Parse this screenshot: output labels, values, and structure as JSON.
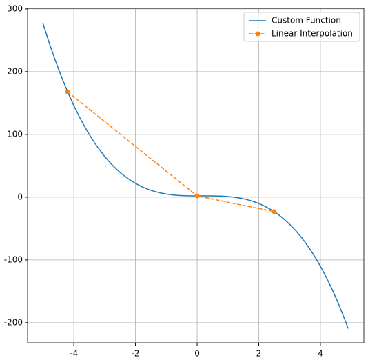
{
  "chart_data": {
    "type": "line",
    "series": [
      {
        "name": "Custom Function",
        "color": "#1f77b4",
        "style": "solid",
        "marker": false,
        "x": [
          -5,
          -4.8,
          -4.6,
          -4.4,
          -4.2,
          -4,
          -3.8,
          -3.6,
          -3.4,
          -3.2,
          -3,
          -2.8,
          -2.6,
          -2.4,
          -2.2,
          -2,
          -1.8,
          -1.6,
          -1.4,
          -1.2,
          -1,
          -0.8,
          -0.6,
          -0.4,
          -0.2,
          0,
          0.2,
          0.4,
          0.6,
          0.8,
          1,
          1.2,
          1.4,
          1.6,
          1.8,
          2,
          2.2,
          2.4,
          2.6,
          2.8,
          3,
          3.2,
          3.4,
          3.6,
          3.8,
          4,
          4.2,
          4.4,
          4.6,
          4.8,
          4.9
        ],
        "values": [
          277,
          246.22,
          217.83,
          191.73,
          167.82,
          146,
          126.18,
          108.27,
          92.17,
          77.78,
          65,
          53.74,
          43.91,
          35.41,
          28.14,
          22,
          16.9,
          12.75,
          9.45,
          6.9,
          5,
          3.66,
          2.79,
          2.29,
          2.06,
          2,
          2.02,
          2.03,
          1.93,
          1.62,
          1,
          -0.02,
          -1.53,
          -3.63,
          -6.42,
          -10,
          -14.46,
          -19.89,
          -26.39,
          -34.06,
          -43,
          -53.3,
          -65.05,
          -78.35,
          -93.3,
          -110,
          -128.54,
          -149.01,
          -171.51,
          -196.14,
          -209.29
        ]
      },
      {
        "name": "Linear Interpolation",
        "color": "#ff7f0e",
        "style": "dashed",
        "marker": true,
        "x": [
          -4.2,
          0,
          2.5
        ],
        "values": [
          167.82,
          2,
          -23
        ]
      }
    ],
    "xlim": [
      -5.5,
      5.41
    ],
    "ylim": [
      -232,
      301
    ],
    "xticks": [
      -4,
      -2,
      0,
      2,
      4
    ],
    "yticks": [
      -200,
      -100,
      0,
      100,
      200,
      300
    ],
    "grid": true,
    "legend": "upper right"
  }
}
